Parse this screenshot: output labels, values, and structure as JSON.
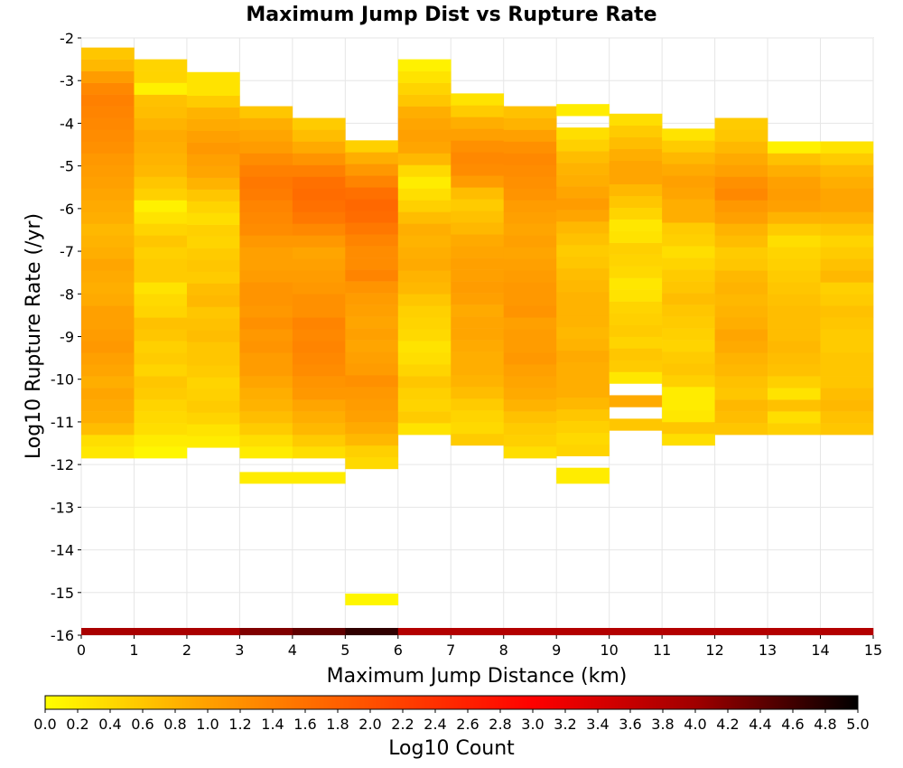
{
  "chart_data": {
    "type": "heatmap",
    "title": "Maximum Jump Dist vs Rupture Rate",
    "xlabel": "Maximum Jump Distance (km)",
    "ylabel": "Log10 Rupture Rate (/yr)",
    "colorbar_label": "Log10 Count",
    "xlim": [
      0,
      15
    ],
    "ylim": [
      -16,
      -2
    ],
    "x_ticks": [
      "0",
      "1",
      "2",
      "3",
      "4",
      "5",
      "6",
      "7",
      "8",
      "9",
      "10",
      "11",
      "12",
      "13",
      "14",
      "15"
    ],
    "y_ticks": [
      "-2",
      "-3",
      "-4",
      "-5",
      "-6",
      "-7",
      "-8",
      "-9",
      "-10",
      "-11",
      "-12",
      "-13",
      "-14",
      "-15",
      "-16"
    ],
    "colorbar_ticks": [
      "0.0",
      "0.2",
      "0.4",
      "0.6",
      "0.8",
      "1.0",
      "1.2",
      "1.4",
      "1.6",
      "1.8",
      "2.0",
      "2.2",
      "2.4",
      "2.6",
      "2.8",
      "3.0",
      "3.2",
      "3.4",
      "3.6",
      "3.8",
      "4.0",
      "4.2",
      "4.4",
      "4.6",
      "4.8",
      "5.0"
    ],
    "color_range": [
      0,
      5
    ],
    "colormap": [
      "#ffff00",
      "#ffa000",
      "#ff5000",
      "#ff0000",
      "#a00000",
      "#000000"
    ],
    "x_bin_width": 1,
    "y_bin_height": 0.275,
    "y_bin_start": -12.45,
    "x_bin_starts": [
      0,
      1,
      2,
      3,
      4,
      5,
      6,
      7,
      8,
      9,
      10,
      11,
      12,
      13,
      14
    ],
    "cells": [
      [
        null,
        null,
        null,
        null,
        null,
        null,
        null,
        null,
        null,
        null,
        null,
        null,
        null,
        null,
        null,
        null,
        null,
        null,
        null,
        null,
        null,
        null,
        null,
        null,
        null,
        null,
        null,
        null,
        null,
        null,
        null,
        null,
        null
      ],
      [
        null,
        null,
        null,
        null,
        null,
        null,
        null,
        null,
        null,
        null,
        null,
        null,
        null,
        null,
        null,
        null,
        null,
        null,
        null,
        null,
        null,
        null,
        null,
        null,
        null,
        null,
        null,
        null,
        null,
        null,
        null,
        null,
        null
      ],
      [
        null,
        null,
        null,
        null,
        null,
        null,
        null,
        null,
        null,
        null,
        null,
        null,
        null,
        null,
        null,
        null,
        null,
        null,
        null,
        null,
        null,
        null,
        null,
        null,
        null,
        null,
        null,
        null,
        null,
        null,
        null,
        null,
        null
      ],
      [
        0.2,
        0.2,
        null,
        null,
        null,
        null,
        null,
        null,
        null,
        null,
        null,
        null,
        null,
        null,
        null,
        null,
        null,
        null,
        null,
        null,
        null,
        null,
        null,
        null,
        null,
        null,
        null,
        null,
        null,
        null,
        null,
        null,
        null
      ],
      [
        0.1,
        0.1,
        0.35,
        0.2,
        0.3,
        0.3,
        0.2,
        0.3,
        0.3,
        0.3,
        0.3,
        0.3,
        0.2,
        0.2,
        0.2,
        null,
        null,
        null,
        null,
        null,
        null,
        null,
        null,
        null,
        null,
        null,
        null,
        null,
        null,
        null,
        null,
        null,
        null
      ],
      [
        0.2,
        0.1,
        0.2,
        0.3,
        0.4,
        0.25,
        0.25,
        0.3,
        0.4,
        0.5,
        0.3,
        0.5,
        0.4,
        0.5,
        0.3,
        null,
        null,
        null,
        null,
        null,
        null,
        null,
        null,
        null,
        null,
        null,
        null,
        null,
        null,
        null,
        null,
        null,
        null
      ],
      [
        0.2,
        0.25,
        0.3,
        0.3,
        0.2,
        0.3,
        0.4,
        0.3,
        0.3,
        0.3,
        0.4,
        0.6,
        0.6,
        0.8,
        0.6,
        null,
        null,
        null,
        null,
        null,
        null,
        null,
        null,
        null,
        null,
        null,
        null,
        null,
        null,
        null,
        null,
        null,
        null
      ],
      [
        0.1,
        0.3,
        0.4,
        0.45,
        0.4,
        0.55,
        0.8,
        0.7,
        0.9,
        0.95,
        1.1,
        1.0,
        0.95,
        0.7,
        0.9,
        null,
        null,
        null,
        null,
        null,
        null,
        null,
        null,
        null,
        null,
        null,
        null,
        null,
        null,
        null,
        null,
        null,
        null
      ],
      [
        0.2,
        0.3,
        0.35,
        0.5,
        0.5,
        0.6,
        0.85,
        1.05,
        1.2,
        1.25,
        1.3,
        1.1,
        1.05,
        0.95,
        1.0,
        null,
        null,
        null,
        null,
        null,
        null,
        null,
        null,
        null,
        null,
        null,
        null,
        null,
        null,
        null,
        null,
        null,
        null
      ],
      [
        0.15,
        0.4,
        0.3,
        0.4,
        0.45,
        0.6,
        0.9,
        1.1,
        1.15,
        1.2,
        1.3,
        1.25,
        1.2,
        1.2,
        1.05,
        null,
        null,
        null,
        null,
        null,
        null,
        null,
        null,
        null,
        null,
        null,
        null,
        null,
        null,
        null,
        null,
        null,
        null
      ],
      [
        0.1,
        0.2,
        0.2,
        0.15,
        0.5,
        0.3,
        0.6,
        0.75,
        0.95,
        0.95,
        1.05,
        1.1,
        1.1,
        1.05,
        1.0,
        null,
        null,
        null,
        null,
        null,
        null,
        null,
        null,
        null,
        null,
        null,
        null,
        null,
        null,
        null,
        null,
        null,
        null
      ],
      [
        0.1,
        0.2,
        0.3,
        0.3,
        0.6,
        0.5,
        0.7,
        0.85,
        1.05,
        1.1,
        1.2,
        1.2,
        1.0,
        1.0,
        0.95,
        null,
        null,
        null,
        null,
        null,
        null,
        null,
        null,
        null,
        null,
        null,
        null,
        null,
        null,
        null,
        null,
        null,
        null
      ],
      [
        null,
        0.1,
        0.2,
        0.3,
        0.6,
        0.55,
        0.5,
        0.6,
        0.75,
        0.9,
        0.95,
        0.85,
        0.7,
        0.4,
        0.25,
        null,
        null,
        null,
        null,
        null,
        null,
        null,
        null,
        null,
        null,
        null,
        null,
        null,
        null,
        null,
        null,
        null,
        null
      ]
    ],
    "columns": [
      {
        "x": 0,
        "values": [
          0.25,
          0.35,
          0.7,
          0.85,
          0.9,
          0.95,
          0.85,
          0.95,
          1.0,
          1.1,
          1.05,
          1.0,
          1.0,
          0.9,
          0.85,
          0.9,
          0.95,
          0.85,
          0.8,
          0.75,
          0.85,
          0.9,
          0.95,
          1.0,
          1.05,
          1.1,
          1.2,
          1.25,
          1.3,
          1.35,
          1.4,
          1.3,
          1.05,
          0.75,
          0.6,
          0.35
        ],
        "y_start": -11.85
      },
      {
        "x": 1,
        "values": [
          0.1,
          0.2,
          0.35,
          0.4,
          0.45,
          0.55,
          0.6,
          0.45,
          0.55,
          0.5,
          0.6,
          0.65,
          0.45,
          0.4,
          0.3,
          0.55,
          0.55,
          0.5,
          0.6,
          0.45,
          0.3,
          0.15,
          0.5,
          0.6,
          0.75,
          0.8,
          0.85,
          0.9,
          0.8,
          0.7,
          0.65,
          0.15,
          0.45,
          0.45
        ],
        "y_start": -11.85
      },
      {
        "x": 2,
        "values": [
          0.2,
          0.3,
          0.45,
          0.55,
          0.5,
          0.45,
          0.55,
          0.6,
          0.6,
          0.7,
          0.65,
          0.6,
          0.75,
          0.7,
          0.55,
          0.6,
          0.55,
          0.45,
          0.5,
          0.35,
          0.45,
          0.6,
          0.8,
          0.95,
          1.0,
          1.1,
          1.0,
          0.9,
          0.8,
          0.55,
          0.3,
          0.3
        ],
        "y_start": -11.6
      },
      {
        "x": 3,
        "values": [
          0.2,
          0.35,
          0.55,
          0.7,
          0.8,
          0.85,
          0.95,
          1.05,
          1.05,
          1.15,
          1.1,
          1.2,
          1.1,
          1.15,
          1.15,
          1.05,
          1.0,
          1.0,
          1.1,
          1.25,
          1.3,
          1.35,
          1.45,
          1.5,
          1.4,
          1.25,
          1.05,
          0.95,
          0.85,
          0.6
        ],
        "y_start": -11.85
      },
      {
        "x": 4,
        "values": [
          0.35,
          0.55,
          0.75,
          0.85,
          0.95,
          1.1,
          1.15,
          1.25,
          1.3,
          1.35,
          1.3,
          1.35,
          1.2,
          1.2,
          1.1,
          1.05,
          1.0,
          0.95,
          1.1,
          1.3,
          1.5,
          1.6,
          1.65,
          1.6,
          1.4,
          1.15,
          0.9,
          0.7,
          0.55
        ],
        "y_start": -11.85
      },
      {
        "x": 5,
        "values": [
          0.4,
          0.5,
          0.75,
          0.9,
          1.0,
          1.05,
          1.1,
          1.2,
          1.05,
          1.0,
          0.95,
          1.0,
          0.95,
          1.0,
          1.05,
          1.15,
          1.35,
          1.25,
          1.25,
          1.35,
          1.5,
          1.65,
          1.7,
          1.6,
          1.35,
          1.1,
          0.85,
          0.5
        ],
        "y_start": -12.1
      }
    ]
  }
}
